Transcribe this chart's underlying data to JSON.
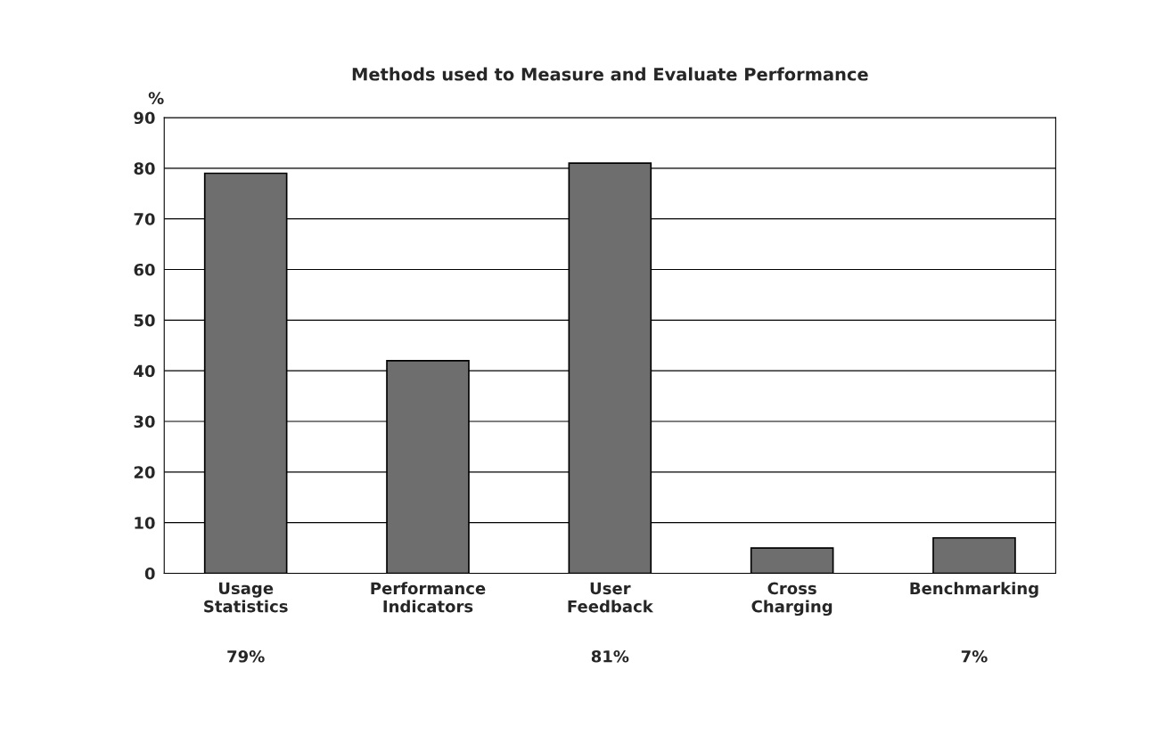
{
  "chart_data": {
    "type": "bar",
    "title": "Methods used to Measure and Evaluate Performance",
    "ylabel": "%",
    "categories": [
      "Usage\nStatistics",
      "Performance\nIndicators",
      "User\nFeedback",
      "Cross\nCharging",
      "Benchmarking"
    ],
    "values": [
      79,
      42,
      81,
      5,
      7
    ],
    "value_labels": [
      "79%",
      null,
      "81%",
      null,
      "7%"
    ],
    "color": "#6e6e6e",
    "ylim": [
      0,
      90
    ],
    "yticks": [
      0,
      10,
      20,
      30,
      40,
      50,
      60,
      70,
      80,
      90
    ],
    "grid": "y",
    "legend": false
  }
}
